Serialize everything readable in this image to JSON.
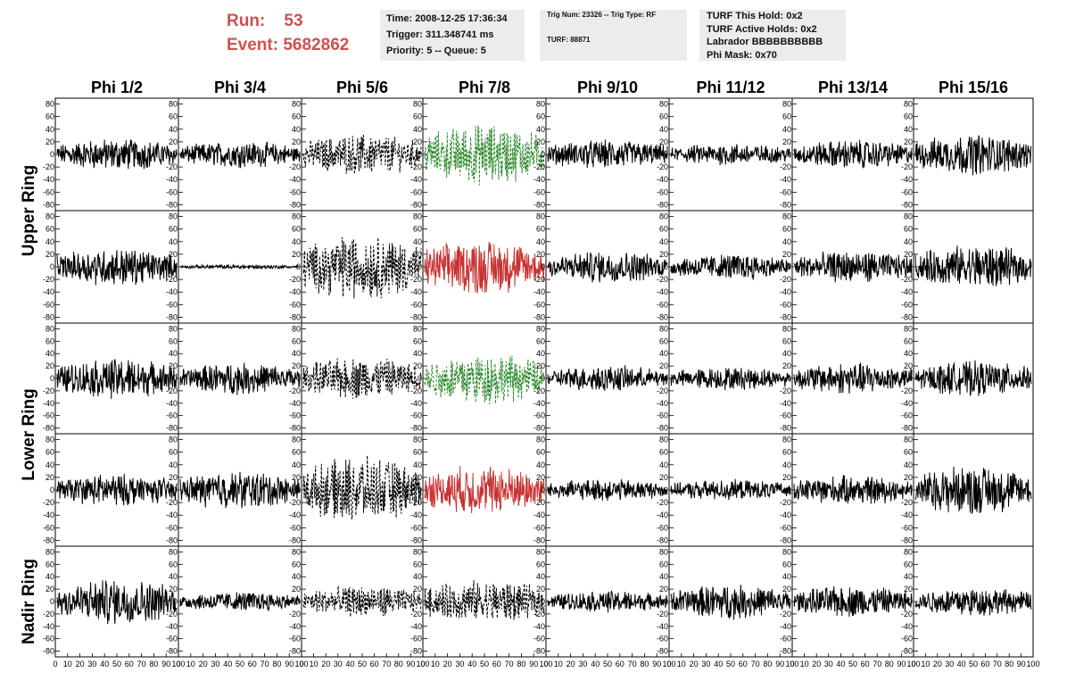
{
  "header": {
    "run_label": "Run:",
    "run_value": "53",
    "event_label": "Event:",
    "event_value": "5682862",
    "time_line": "Time: 2008-12-25 17:36:34",
    "trigger_line": "Trigger: 311.348741 ms",
    "priority_line": "Priority: 5 -- Queue: 5",
    "trig_line": "Trig Num: 23326 -- Trig Type: RF",
    "turf_line": "TURF: 88871",
    "hold_line": "TURF This Hold: 0x2",
    "active_holds_line": "TURF Active Holds: 0x2",
    "labrador_line": "Labrador BBBBBBBBBB",
    "phimask_line": "Phi Mask: 0x70"
  },
  "colors": {
    "accent_text": "#d0504e",
    "trace_default": "#000000",
    "trace_green": "#2e8b2e",
    "trace_red": "#c83232",
    "info_bg": "#ececec"
  },
  "chart_data": {
    "type": "line",
    "columns": [
      "Phi 1/2",
      "Phi 3/4",
      "Phi 5/6",
      "Phi 7/8",
      "Phi 9/10",
      "Phi 11/12",
      "Phi 13/14",
      "Phi 15/16"
    ],
    "ring_labels": [
      "Upper Ring",
      "Lower Ring",
      "Nadir Ring"
    ],
    "ylim": [
      -85,
      85
    ],
    "xlim": [
      0,
      100
    ],
    "y_ticks": [
      -80,
      -60,
      -40,
      -20,
      0,
      20,
      40,
      60,
      80
    ],
    "x_tick_labels": [
      "0",
      "10",
      "20",
      "30",
      "40",
      "50",
      "60",
      "70",
      "80",
      "90",
      "100"
    ],
    "grid": false,
    "rows": [
      {
        "ring": "Upper Ring",
        "cells": [
          {
            "amp": 22,
            "style": "solid",
            "color": "trace_default"
          },
          {
            "amp": 18,
            "style": "solid",
            "color": "trace_default"
          },
          {
            "amp": 28,
            "style": "dashed",
            "color": "trace_default"
          },
          {
            "amp": 42,
            "style": "dashed",
            "color": "trace_green"
          },
          {
            "amp": 20,
            "style": "solid",
            "color": "trace_default"
          },
          {
            "amp": 15,
            "style": "solid",
            "color": "trace_default"
          },
          {
            "amp": 20,
            "style": "solid",
            "color": "trace_default"
          },
          {
            "amp": 28,
            "style": "solid",
            "color": "trace_default"
          }
        ]
      },
      {
        "ring": "Upper Ring",
        "cells": [
          {
            "amp": 26,
            "style": "solid",
            "color": "trace_default"
          },
          {
            "amp": 3,
            "style": "solid",
            "color": "trace_default"
          },
          {
            "amp": 45,
            "style": "dashed",
            "color": "trace_default"
          },
          {
            "amp": 38,
            "style": "solid",
            "color": "trace_red"
          },
          {
            "amp": 22,
            "style": "solid",
            "color": "trace_default"
          },
          {
            "amp": 18,
            "style": "solid",
            "color": "trace_default"
          },
          {
            "amp": 22,
            "style": "solid",
            "color": "trace_default"
          },
          {
            "amp": 30,
            "style": "solid",
            "color": "trace_default"
          }
        ]
      },
      {
        "ring": "Lower Ring",
        "cells": [
          {
            "amp": 28,
            "style": "solid",
            "color": "trace_default"
          },
          {
            "amp": 22,
            "style": "solid",
            "color": "trace_default"
          },
          {
            "amp": 30,
            "style": "dashed",
            "color": "trace_default"
          },
          {
            "amp": 36,
            "style": "dashed",
            "color": "trace_green"
          },
          {
            "amp": 18,
            "style": "solid",
            "color": "trace_default"
          },
          {
            "amp": 16,
            "style": "solid",
            "color": "trace_default"
          },
          {
            "amp": 22,
            "style": "solid",
            "color": "trace_default"
          },
          {
            "amp": 24,
            "style": "solid",
            "color": "trace_default"
          }
        ]
      },
      {
        "ring": "Lower Ring",
        "cells": [
          {
            "amp": 22,
            "style": "solid",
            "color": "trace_default"
          },
          {
            "amp": 26,
            "style": "solid",
            "color": "trace_default"
          },
          {
            "amp": 45,
            "style": "dashed",
            "color": "trace_default"
          },
          {
            "amp": 34,
            "style": "solid",
            "color": "trace_red"
          },
          {
            "amp": 15,
            "style": "solid",
            "color": "trace_default"
          },
          {
            "amp": 14,
            "style": "solid",
            "color": "trace_default"
          },
          {
            "amp": 20,
            "style": "solid",
            "color": "trace_default"
          },
          {
            "amp": 34,
            "style": "solid",
            "color": "trace_default"
          }
        ]
      },
      {
        "ring": "Nadir Ring",
        "cells": [
          {
            "amp": 32,
            "style": "solid",
            "color": "trace_default"
          },
          {
            "amp": 14,
            "style": "solid",
            "color": "trace_default"
          },
          {
            "amp": 22,
            "style": "dashed",
            "color": "trace_default"
          },
          {
            "amp": 30,
            "style": "dashed",
            "color": "trace_default"
          },
          {
            "amp": 15,
            "style": "solid",
            "color": "trace_default"
          },
          {
            "amp": 24,
            "style": "solid",
            "color": "trace_default"
          },
          {
            "amp": 22,
            "style": "solid",
            "color": "trace_default"
          },
          {
            "amp": 20,
            "style": "solid",
            "color": "trace_default"
          }
        ]
      }
    ]
  }
}
